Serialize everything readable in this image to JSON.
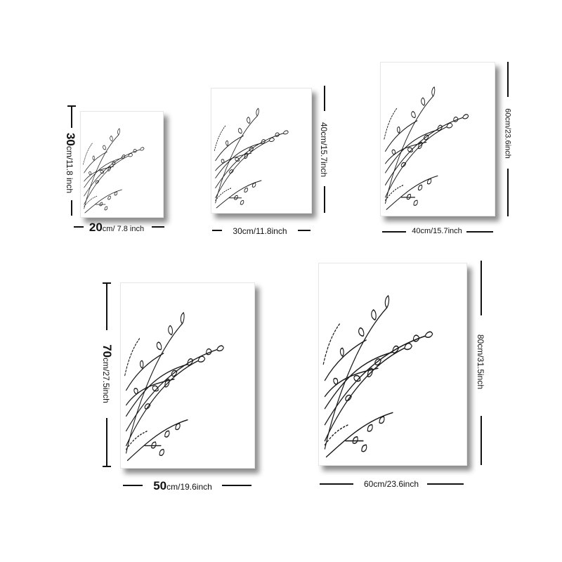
{
  "stroke_color": "#1a1a1a",
  "prints": [
    {
      "id": "20x30",
      "width_label": "20",
      "width_unit": "cm/ 7.8 inch",
      "height_label": "30",
      "height_unit": "cm/11.8 inch"
    },
    {
      "id": "30x40",
      "width_label": "30cm/11.8inch",
      "height_label": "40cm/15.7inch"
    },
    {
      "id": "40x60",
      "width_label": "40cm/15.7inch",
      "height_label": "60cm/23.6inch"
    },
    {
      "id": "50x70",
      "width_label": "50",
      "width_unit": "cm/19.6inch",
      "height_label": "70",
      "height_unit": "cm/27.5inch"
    },
    {
      "id": "60x80",
      "width_label": "60cm/23.6inch",
      "height_label": "80cm/31.5inch"
    }
  ]
}
